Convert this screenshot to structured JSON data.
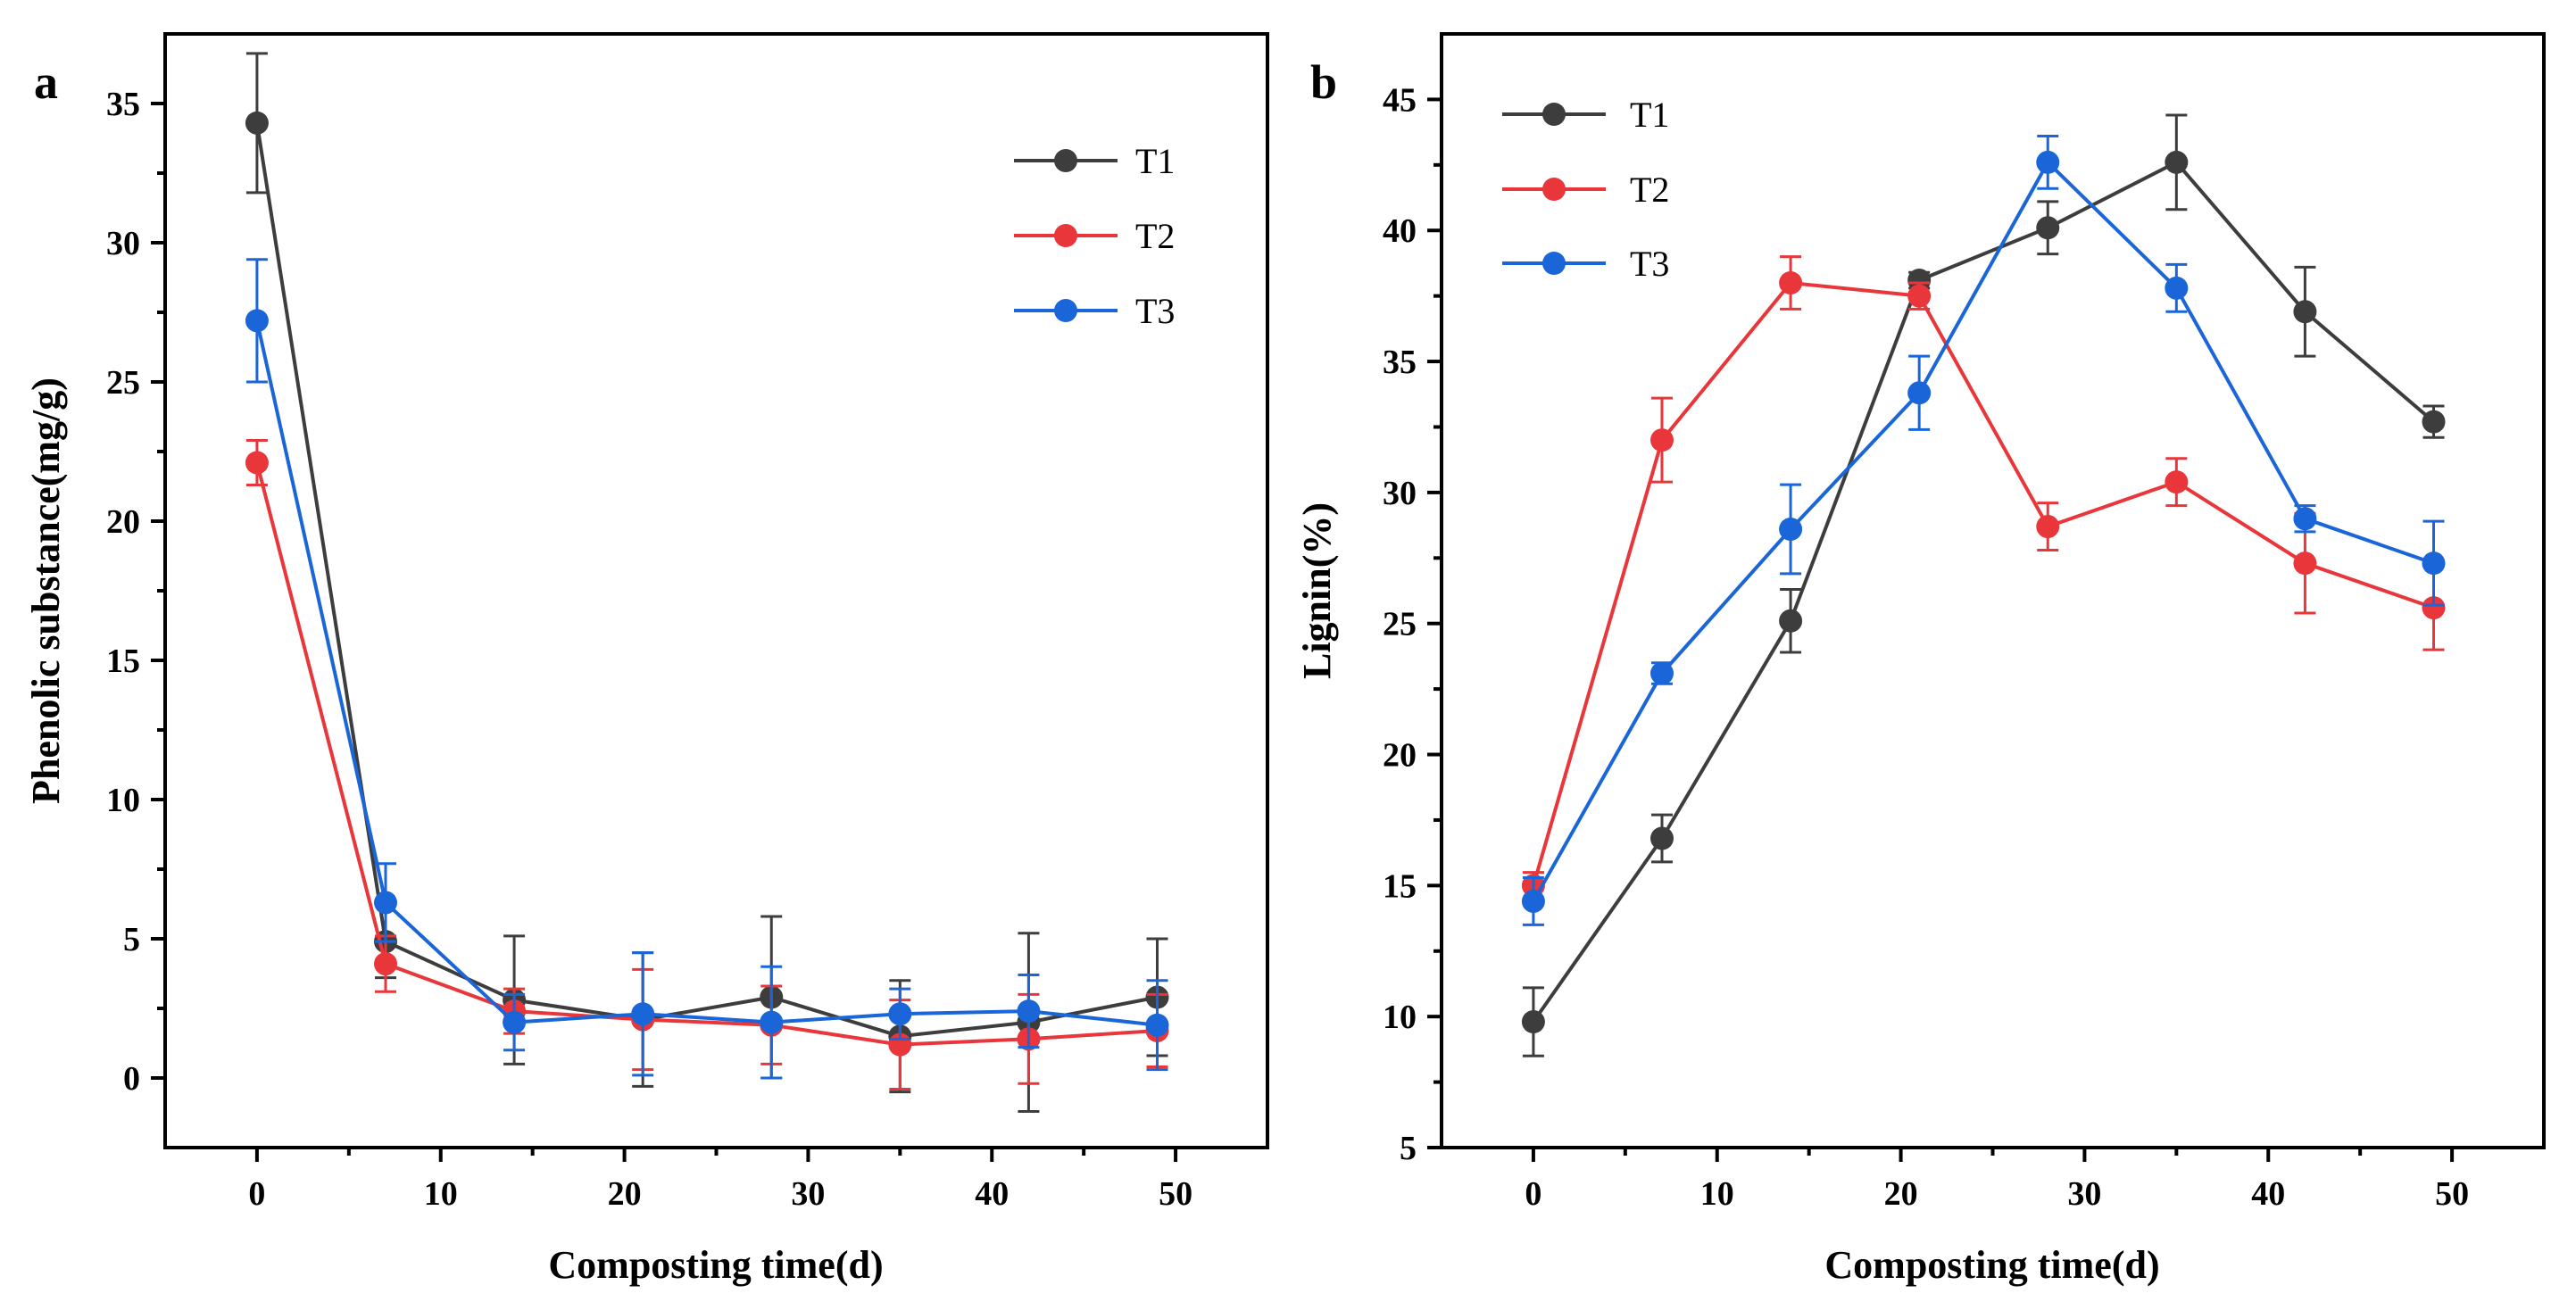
{
  "chart_data": [
    {
      "type": "line",
      "panel_label": "a",
      "title": "",
      "xlabel": "Composting time(d)",
      "ylabel": "Phenolic substance(mg/g)",
      "xlim": [
        -5,
        55
      ],
      "ylim": [
        -2.5,
        37.5
      ],
      "xticks": [
        0,
        10,
        20,
        30,
        40,
        50
      ],
      "yticks": [
        0,
        5,
        10,
        15,
        20,
        25,
        30,
        35
      ],
      "legend_position": "top-right",
      "x": [
        0,
        7,
        14,
        21,
        28,
        35,
        42,
        49
      ],
      "series": [
        {
          "name": "T1",
          "color": "#3d3d3d",
          "values": [
            34.3,
            4.9,
            2.8,
            2.1,
            2.9,
            1.5,
            2.0,
            2.9
          ],
          "errors": [
            2.5,
            1.3,
            2.3,
            2.4,
            2.9,
            2.0,
            3.2,
            2.1
          ]
        },
        {
          "name": "T2",
          "color": "#e8363a",
          "values": [
            22.1,
            4.1,
            2.4,
            2.1,
            1.9,
            1.2,
            1.4,
            1.7
          ],
          "errors": [
            0.8,
            1.0,
            0.8,
            1.8,
            1.4,
            1.6,
            1.6,
            1.3
          ]
        },
        {
          "name": "T3",
          "color": "#1a66d9",
          "values": [
            27.2,
            6.3,
            2.0,
            2.3,
            2.0,
            2.3,
            2.4,
            1.9
          ],
          "errors": [
            2.2,
            1.4,
            1.0,
            2.2,
            2.0,
            0.9,
            1.3,
            1.6
          ]
        }
      ]
    },
    {
      "type": "line",
      "panel_label": "b",
      "title": "",
      "xlabel": "Composting time(d)",
      "ylabel": "Lignin(%)",
      "xlim": [
        -5,
        55
      ],
      "ylim": [
        5,
        47.5
      ],
      "xticks": [
        0,
        10,
        20,
        30,
        40,
        50
      ],
      "yticks": [
        5,
        10,
        15,
        20,
        25,
        30,
        35,
        40,
        45
      ],
      "legend_position": "top-left",
      "x": [
        0,
        7,
        14,
        21,
        28,
        35,
        42,
        49
      ],
      "series": [
        {
          "name": "T1",
          "color": "#3d3d3d",
          "values": [
            9.8,
            16.8,
            25.1,
            38.1,
            40.1,
            42.6,
            36.9,
            32.7
          ],
          "errors": [
            1.3,
            0.9,
            1.2,
            0.3,
            1.0,
            1.8,
            1.7,
            0.6
          ]
        },
        {
          "name": "T2",
          "color": "#e8363a",
          "values": [
            15.0,
            32.0,
            38.0,
            37.5,
            28.7,
            30.4,
            27.3,
            25.6
          ],
          "errors": [
            0.5,
            1.6,
            1.0,
            0.5,
            0.9,
            0.9,
            1.9,
            1.6
          ]
        },
        {
          "name": "T3",
          "color": "#1a66d9",
          "values": [
            14.4,
            23.1,
            28.6,
            33.8,
            42.6,
            37.8,
            29.0,
            27.3
          ],
          "errors": [
            0.9,
            0.4,
            1.7,
            1.4,
            1.0,
            0.9,
            0.5,
            1.6
          ]
        }
      ]
    }
  ]
}
